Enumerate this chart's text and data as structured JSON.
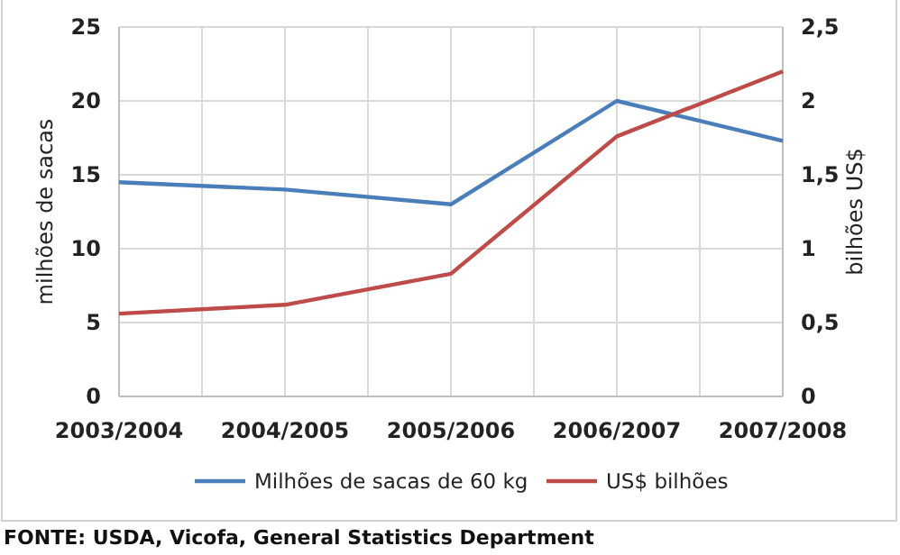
{
  "chart_data": {
    "type": "line",
    "categories": [
      "2003/2004",
      "2004/2005",
      "2005/2006",
      "2006/2007",
      "2007/2008"
    ],
    "series": [
      {
        "name": "Milhões de sacas de 60 kg",
        "color": "#4a7ebb",
        "values": [
          14.5,
          14,
          13,
          20,
          17.3
        ]
      },
      {
        "name": "US$ bilhões",
        "color": "#be4b48",
        "values": [
          0.56,
          0.62,
          0.83,
          1.76,
          2.2
        ],
        "axis": "y2"
      }
    ],
    "ylabel": "milhões de sacas",
    "y2label": "bilhões US$",
    "ylim": [
      0,
      25
    ],
    "yticks": [
      0,
      5,
      10,
      15,
      20,
      25
    ],
    "y2lim": [
      0,
      2.5
    ],
    "y2ticks": [
      0,
      {
        "value": 0.5,
        "label": "0,5"
      },
      1,
      {
        "value": 1.5,
        "label": "1,5"
      },
      2,
      {
        "value": 2.5,
        "label": "2,5"
      }
    ],
    "grid": true,
    "legend": "bottom",
    "marker": "none",
    "line_style": "solid",
    "annotations": [
      "FONTE: USDA, Vicofa, General Statistics Department"
    ]
  }
}
